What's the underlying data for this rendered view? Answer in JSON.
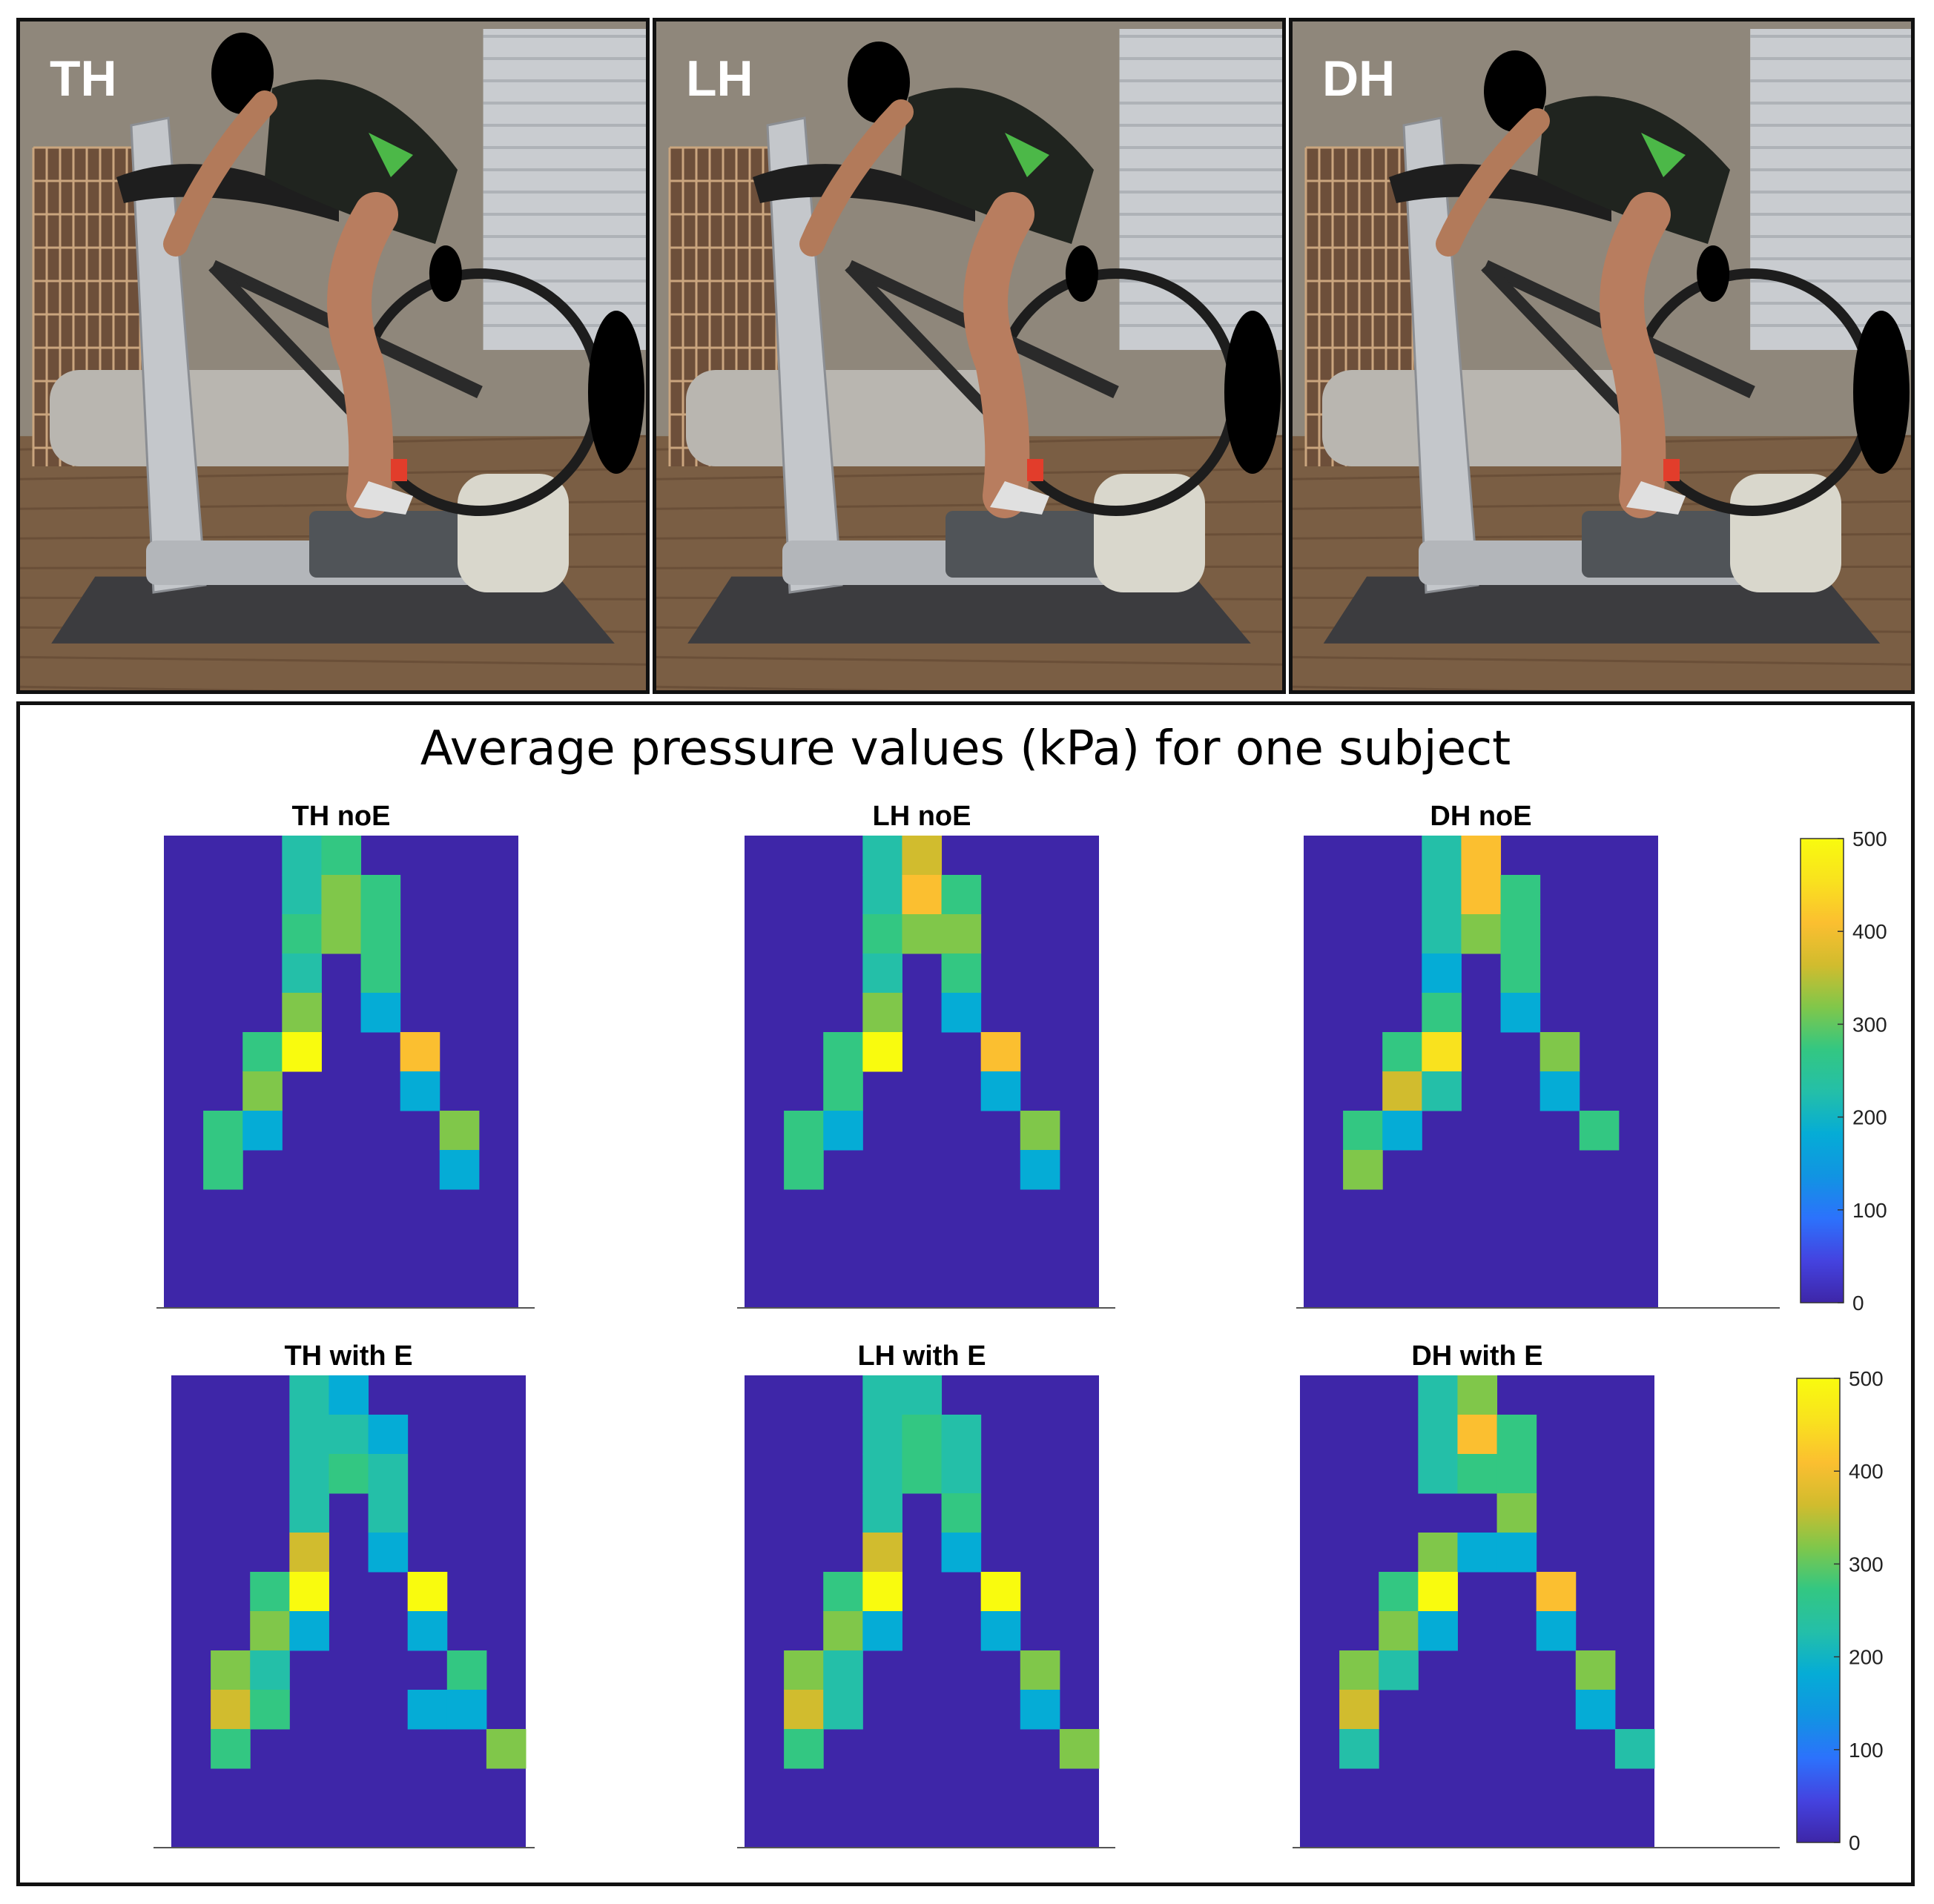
{
  "photos": [
    {
      "label": "TH",
      "posture": "TH"
    },
    {
      "label": "LH",
      "posture": "LH"
    },
    {
      "label": "DH",
      "posture": "DH"
    }
  ],
  "colors": {
    "scale": [
      "#3e26a8",
      "#4443e0",
      "#2c72fc",
      "#1194e2",
      "#05acd6",
      "#24bfa8",
      "#33c782",
      "#80c74a",
      "#d1bc2e",
      "#fbbf30",
      "#f9e21e",
      "#f9fb0e"
    ],
    "background_cell": "#3e26a8",
    "frame": "#111111"
  },
  "chart_data": {
    "type": "heatmap",
    "title": "Average pressure values (kPa) for one subject",
    "colorbar": {
      "min": 0,
      "max": 500,
      "ticks": [
        0,
        100,
        200,
        300,
        400,
        500
      ]
    },
    "grid": {
      "rows": 12,
      "cols": 9
    },
    "panels": [
      {
        "title": "TH noE",
        "cells": [
          [
            0,
            3,
            220
          ],
          [
            0,
            4,
            270
          ],
          [
            1,
            3,
            220
          ],
          [
            1,
            4,
            340
          ],
          [
            1,
            5,
            270
          ],
          [
            2,
            3,
            250
          ],
          [
            2,
            4,
            300
          ],
          [
            2,
            5,
            290
          ],
          [
            3,
            3,
            210
          ],
          [
            3,
            5,
            250
          ],
          [
            4,
            3,
            330
          ],
          [
            4,
            5,
            180
          ],
          [
            5,
            2,
            260
          ],
          [
            5,
            3,
            510
          ],
          [
            5,
            6,
            430
          ],
          [
            6,
            2,
            300
          ],
          [
            6,
            6,
            170
          ],
          [
            7,
            1,
            290
          ],
          [
            7,
            2,
            200
          ],
          [
            7,
            7,
            310
          ],
          [
            8,
            1,
            290
          ],
          [
            8,
            7,
            180
          ]
        ]
      },
      {
        "title": "LH noE",
        "cells": [
          [
            0,
            3,
            220
          ],
          [
            0,
            4,
            380
          ],
          [
            1,
            3,
            220
          ],
          [
            1,
            4,
            420
          ],
          [
            1,
            5,
            270
          ],
          [
            2,
            3,
            260
          ],
          [
            2,
            4,
            330
          ],
          [
            2,
            5,
            300
          ],
          [
            3,
            3,
            210
          ],
          [
            3,
            5,
            290
          ],
          [
            4,
            3,
            320
          ],
          [
            4,
            5,
            180
          ],
          [
            5,
            2,
            260
          ],
          [
            5,
            3,
            510
          ],
          [
            5,
            6,
            430
          ],
          [
            6,
            2,
            290
          ],
          [
            6,
            6,
            170
          ],
          [
            7,
            1,
            290
          ],
          [
            7,
            2,
            200
          ],
          [
            7,
            7,
            310
          ],
          [
            8,
            1,
            290
          ],
          [
            8,
            7,
            180
          ]
        ]
      },
      {
        "title": "DH noE",
        "cells": [
          [
            0,
            3,
            220
          ],
          [
            0,
            4,
            420
          ],
          [
            1,
            3,
            220
          ],
          [
            1,
            4,
            430
          ],
          [
            1,
            5,
            280
          ],
          [
            2,
            3,
            220
          ],
          [
            2,
            4,
            300
          ],
          [
            2,
            5,
            290
          ],
          [
            3,
            3,
            200
          ],
          [
            3,
            5,
            270
          ],
          [
            4,
            3,
            260
          ],
          [
            4,
            5,
            180
          ],
          [
            5,
            2,
            260
          ],
          [
            5,
            3,
            460
          ],
          [
            5,
            6,
            320
          ],
          [
            6,
            2,
            350
          ],
          [
            6,
            3,
            210
          ],
          [
            6,
            6,
            200
          ],
          [
            7,
            1,
            270
          ],
          [
            7,
            2,
            200
          ],
          [
            7,
            7,
            290
          ],
          [
            8,
            1,
            300
          ]
        ]
      },
      {
        "title": "TH with E",
        "cells": [
          [
            0,
            3,
            220
          ],
          [
            0,
            4,
            170
          ],
          [
            1,
            3,
            220
          ],
          [
            1,
            4,
            230
          ],
          [
            1,
            5,
            170
          ],
          [
            2,
            3,
            220
          ],
          [
            2,
            4,
            250
          ],
          [
            2,
            5,
            220
          ],
          [
            3,
            3,
            220
          ],
          [
            3,
            5,
            230
          ],
          [
            4,
            3,
            360
          ],
          [
            4,
            5,
            200
          ],
          [
            5,
            2,
            260
          ],
          [
            5,
            3,
            510
          ],
          [
            5,
            6,
            490
          ],
          [
            6,
            2,
            340
          ],
          [
            6,
            3,
            160
          ],
          [
            6,
            6,
            180
          ],
          [
            7,
            1,
            310
          ],
          [
            7,
            2,
            220
          ],
          [
            7,
            7,
            290
          ],
          [
            8,
            1,
            350
          ],
          [
            8,
            2,
            250
          ],
          [
            8,
            6,
            190
          ],
          [
            8,
            7,
            170
          ],
          [
            9,
            1,
            260
          ],
          [
            9,
            8,
            300
          ]
        ]
      },
      {
        "title": "LH with E",
        "cells": [
          [
            0,
            3,
            220
          ],
          [
            0,
            4,
            240
          ],
          [
            1,
            3,
            220
          ],
          [
            1,
            4,
            280
          ],
          [
            1,
            5,
            220
          ],
          [
            2,
            3,
            240
          ],
          [
            2,
            4,
            250
          ],
          [
            2,
            5,
            230
          ],
          [
            3,
            3,
            220
          ],
          [
            3,
            5,
            290
          ],
          [
            4,
            3,
            370
          ],
          [
            4,
            5,
            180
          ],
          [
            5,
            2,
            270
          ],
          [
            5,
            3,
            510
          ],
          [
            5,
            6,
            480
          ],
          [
            6,
            2,
            330
          ],
          [
            6,
            3,
            190
          ],
          [
            6,
            6,
            200
          ],
          [
            7,
            1,
            340
          ],
          [
            7,
            2,
            240
          ],
          [
            7,
            7,
            310
          ],
          [
            8,
            1,
            350
          ],
          [
            8,
            2,
            240
          ],
          [
            8,
            7,
            180
          ],
          [
            9,
            1,
            250
          ],
          [
            9,
            8,
            300
          ]
        ]
      },
      {
        "title": "DH with E",
        "cells": [
          [
            0,
            3,
            230
          ],
          [
            0,
            4,
            300
          ],
          [
            1,
            3,
            230
          ],
          [
            1,
            4,
            430
          ],
          [
            1,
            5,
            280
          ],
          [
            2,
            3,
            230
          ],
          [
            2,
            4,
            290
          ],
          [
            2,
            5,
            290
          ],
          [
            3,
            5,
            330
          ],
          [
            4,
            3,
            340
          ],
          [
            4,
            4,
            160
          ],
          [
            4,
            5,
            200
          ],
          [
            5,
            2,
            260
          ],
          [
            5,
            3,
            510
          ],
          [
            5,
            6,
            420
          ],
          [
            6,
            2,
            330
          ],
          [
            6,
            3,
            200
          ],
          [
            6,
            6,
            200
          ],
          [
            7,
            1,
            310
          ],
          [
            7,
            2,
            230
          ],
          [
            7,
            7,
            310
          ],
          [
            8,
            1,
            350
          ],
          [
            8,
            7,
            190
          ],
          [
            9,
            1,
            230
          ],
          [
            9,
            8,
            230
          ]
        ]
      }
    ]
  }
}
